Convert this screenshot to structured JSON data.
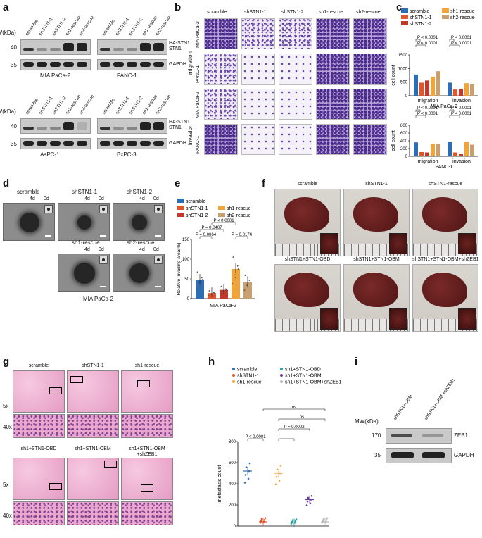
{
  "panels": {
    "a": {
      "label": "a",
      "mw_label": "MW(kDa)",
      "lanes": [
        "scramble",
        "shSTN1-1",
        "shSTN1-2",
        "sh1-rescue",
        "sh2-rescue"
      ],
      "markers_top": [
        "40",
        "35"
      ],
      "band_labels": [
        "HA-STN1",
        "STN1",
        "GAPDH"
      ],
      "cell_lines": [
        "MIA PaCa-2",
        "PANC-1",
        "AsPC-1",
        "BxPC-3"
      ]
    },
    "b": {
      "label": "b",
      "columns": [
        "scramble",
        "shSTN1-1",
        "shSTN1-2",
        "sh1-rescue",
        "sh2-rescue"
      ],
      "groups": [
        "migration",
        "invasion"
      ],
      "rows": [
        "MIA PaCa-2",
        "PANC-1",
        "MIA PaCa-2",
        "PANC-1"
      ]
    },
    "c": {
      "label": "c",
      "legend": [
        "scramble",
        "shSTN1-1",
        "shSTN1-2",
        "sh1-rescue",
        "sh2-rescue"
      ],
      "pvals": [
        "P < 0.0001",
        "P < 0.0001",
        "P < 0.0001",
        "P < 0.0001",
        "P < 0.0001",
        "P < 0.0001",
        "P < 0.0001",
        "P < 0.0001"
      ],
      "ylabel": "cell count"
    },
    "d": {
      "label": "d",
      "conditions": [
        "scramble",
        "shSTN1-1",
        "shSTN1-2",
        "sh1-rescue",
        "sh2-rescue"
      ],
      "t4": "4d",
      "t0": "0d",
      "caption": "MIA PaCa-2"
    },
    "e": {
      "label": "e",
      "pvals": [
        "P = 0.0064",
        "P = 0.0407",
        "P < 0.0001",
        "P = 0.0174"
      ],
      "ylabel": "Relative Invading area(%)",
      "xcaption": "MIA PaCa-2"
    },
    "f": {
      "label": "f",
      "conditions": [
        "scramble",
        "shSTN1-1",
        "shSTN1-rescue",
        "shSTN1+STN1-OBD",
        "shSTN1+STN1-OBM",
        "shSTN1+STN1-OBM+shZEB1"
      ]
    },
    "g": {
      "label": "g",
      "top_conditions": [
        "scramble",
        "shSTN1-1",
        "sh1-rescue"
      ],
      "bottom_conditions": [
        "sh1+STN1-OBD",
        "sh1+STN1-OBM",
        "sh1+STN1-OBM"
      ],
      "bottom_extra": "+shZEB1",
      "mag5": "5x",
      "mag40": "40x"
    },
    "h": {
      "label": "h",
      "legend": [
        "scramble",
        "shSTN1-1",
        "sh1-rescue",
        "sh1+STN1-OBD",
        "sh1+STN1-OBM",
        "sh1+STN1-OBM+shZEB1"
      ],
      "pvals": [
        "ns",
        "ns",
        "P = 0.0002",
        "P < 0.0001"
      ],
      "ylabel": "metastasis count"
    },
    "i": {
      "label": "i",
      "mw_label": "MW(kDa)",
      "lanes": [
        "shSTN1+OBM",
        "shSTN1+OBM +shZEB1"
      ],
      "markers": [
        "170",
        "35"
      ],
      "band_labels": [
        "ZEB1",
        "GAPDH"
      ]
    }
  },
  "colors": {
    "scramble": "#2f6db3",
    "shSTN1-1": "#e0562b",
    "shSTN1-2": "#c0392b",
    "sh1-rescue": "#f0a43a",
    "sh2-rescue": "#c8a070",
    "OBD": "#2aa19a",
    "OBM": "#6a3d9a",
    "OBMZEB1": "#bbbbbb"
  },
  "chart_data": [
    {
      "type": "bar",
      "title": "MIA PaCa-2",
      "categories": [
        "migration",
        "invasion"
      ],
      "ylabel": "cell count",
      "ylim": [
        0,
        1500
      ],
      "yticks": [
        0,
        500,
        1000,
        1500
      ],
      "series": [
        {
          "name": "scramble",
          "values": [
            780,
            480
          ]
        },
        {
          "name": "shSTN1-1",
          "values": [
            480,
            230
          ]
        },
        {
          "name": "shSTN1-2",
          "values": [
            560,
            260
          ]
        },
        {
          "name": "sh1-rescue",
          "values": [
            700,
            460
          ]
        },
        {
          "name": "sh2-rescue",
          "values": [
            900,
            440
          ]
        }
      ]
    },
    {
      "type": "bar",
      "title": "PANC-1",
      "categories": [
        "migration",
        "invasion"
      ],
      "ylabel": "cell count",
      "ylim": [
        0,
        800
      ],
      "yticks": [
        0,
        200,
        400,
        600,
        800
      ],
      "series": [
        {
          "name": "scramble",
          "values": [
            360,
            380
          ]
        },
        {
          "name": "shSTN1-1",
          "values": [
            110,
            100
          ]
        },
        {
          "name": "shSTN1-2",
          "values": [
            100,
            70
          ]
        },
        {
          "name": "sh1-rescue",
          "values": [
            320,
            380
          ]
        },
        {
          "name": "sh2-rescue",
          "values": [
            320,
            300
          ]
        }
      ]
    },
    {
      "type": "bar",
      "title": "",
      "categories": [
        "scramble",
        "shSTN1-1",
        "shSTN1-2",
        "sh1-rescue",
        "sh2-rescue"
      ],
      "ylabel": "Relative Invading area(%)",
      "ylim": [
        0,
        150
      ],
      "yticks": [
        0,
        50,
        100,
        150
      ],
      "values": [
        48,
        14,
        22,
        75,
        42
      ]
    },
    {
      "type": "scatter",
      "title": "",
      "categories": [
        "scramble",
        "shSTN1-1",
        "sh1-rescue",
        "sh1+STN1-OBD",
        "sh1+STN1-OBM",
        "sh1+STN1-OBM+shZEB1"
      ],
      "ylabel": "metastasis count",
      "ylim": [
        0,
        800
      ],
      "yticks": [
        0,
        200,
        400,
        600,
        800
      ],
      "means": [
        520,
        40,
        500,
        30,
        250,
        40
      ]
    }
  ]
}
